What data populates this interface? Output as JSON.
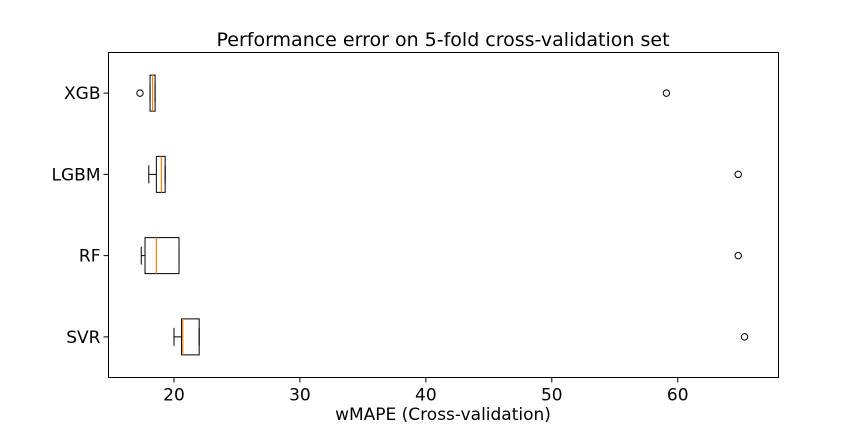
{
  "chart_data": {
    "type": "boxplot",
    "orientation": "horizontal",
    "title": "Performance error on 5-fold cross-validation set",
    "xlabel": "wMAPE (Cross-validation)",
    "ylabel": "",
    "xlim": [
      14.8,
      68.0
    ],
    "xticks": [
      20,
      30,
      40,
      50,
      60
    ],
    "grid": false,
    "categories": [
      "SVR",
      "RF",
      "LGBM",
      "XGB"
    ],
    "series": [
      {
        "category": "SVR",
        "whislo": 20.0,
        "q1": 20.6,
        "med": 20.7,
        "q3": 22.0,
        "whishi": 22.0,
        "fliers": [
          65.3
        ]
      },
      {
        "category": "RF",
        "whislo": 17.4,
        "q1": 17.7,
        "med": 18.6,
        "q3": 20.4,
        "whishi": 20.4,
        "fliers": [
          64.8
        ]
      },
      {
        "category": "LGBM",
        "whislo": 18.0,
        "q1": 18.6,
        "med": 19.0,
        "q3": 19.3,
        "whishi": 19.3,
        "fliers": [
          64.8
        ]
      },
      {
        "category": "XGB",
        "whislo": 18.1,
        "q1": 18.1,
        "med": 18.3,
        "q3": 18.5,
        "whishi": 18.5,
        "fliers": [
          17.3,
          59.1
        ]
      }
    ],
    "colors": {
      "box": "#000000",
      "median": "#ff7f0e",
      "flier": "#000000"
    }
  }
}
